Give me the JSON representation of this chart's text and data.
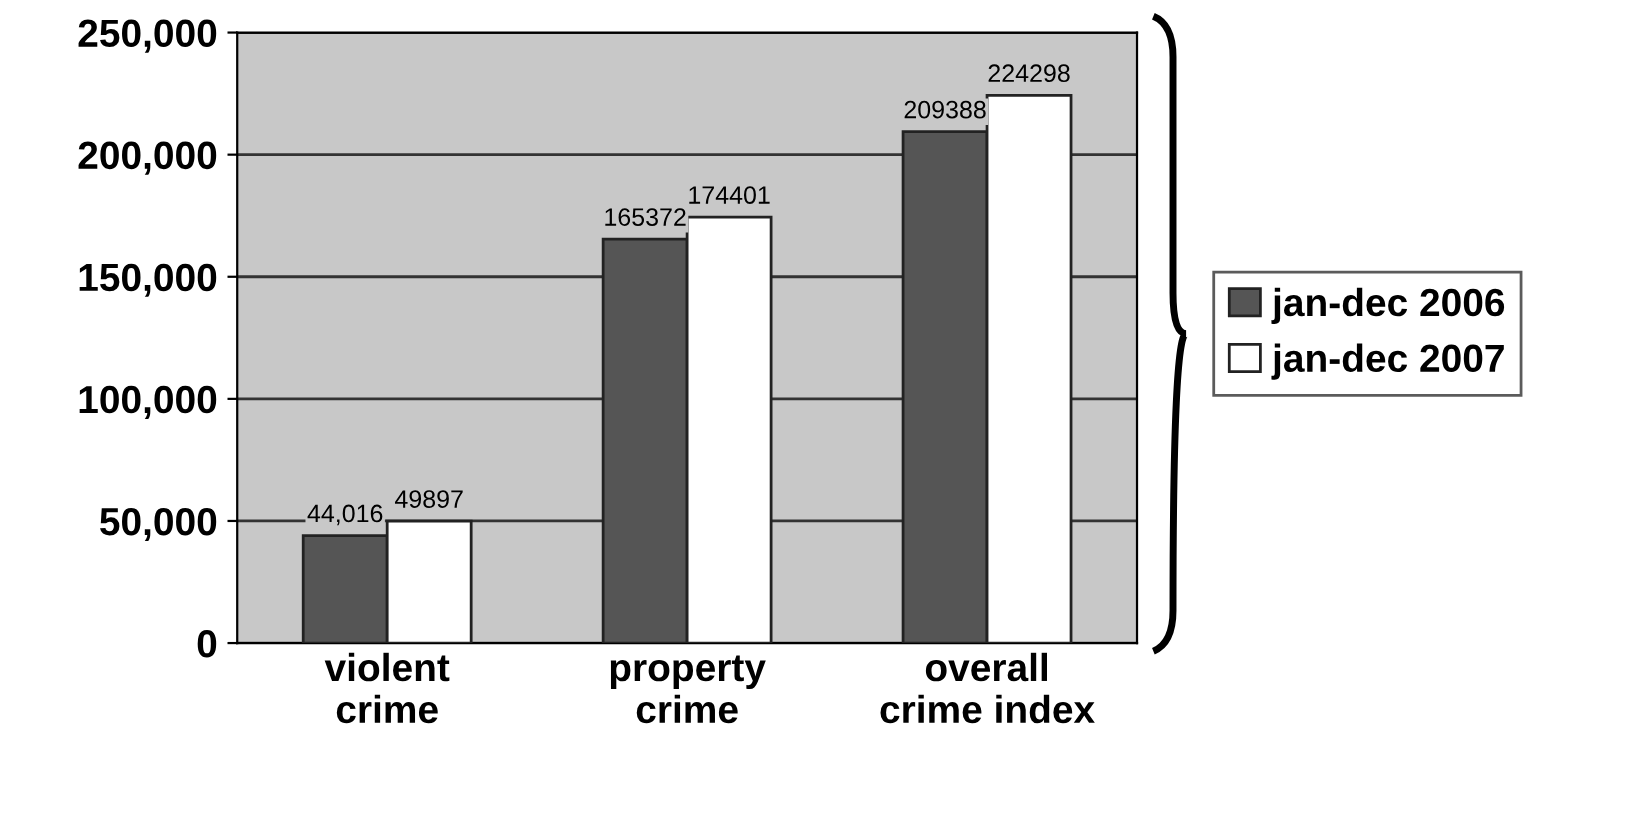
{
  "chart_data": {
    "type": "bar",
    "categories": [
      "violent\ncrime",
      "property\ncrime",
      "overall\ncrime index"
    ],
    "series": [
      {
        "name": "jan-dec 2006",
        "color": "#555555",
        "values": [
          44016,
          165372,
          209388
        ],
        "value_labels": [
          "44,016",
          "165372",
          "209388"
        ]
      },
      {
        "name": "jan-dec 2007",
        "color": "#ffffff",
        "values": [
          49897,
          174401,
          224298
        ],
        "value_labels": [
          "49897",
          "174401",
          "224298"
        ]
      }
    ],
    "ylim": [
      0,
      250000
    ],
    "yticks": [
      {
        "value": 0,
        "label": "0"
      },
      {
        "value": 50000,
        "label": "50,000"
      },
      {
        "value": 100000,
        "label": "100,000"
      },
      {
        "value": 150000,
        "label": "150,000"
      },
      {
        "value": 200000,
        "label": "200,000"
      },
      {
        "value": 250000,
        "label": "250,000"
      }
    ],
    "grid": "y",
    "legend": "right"
  }
}
